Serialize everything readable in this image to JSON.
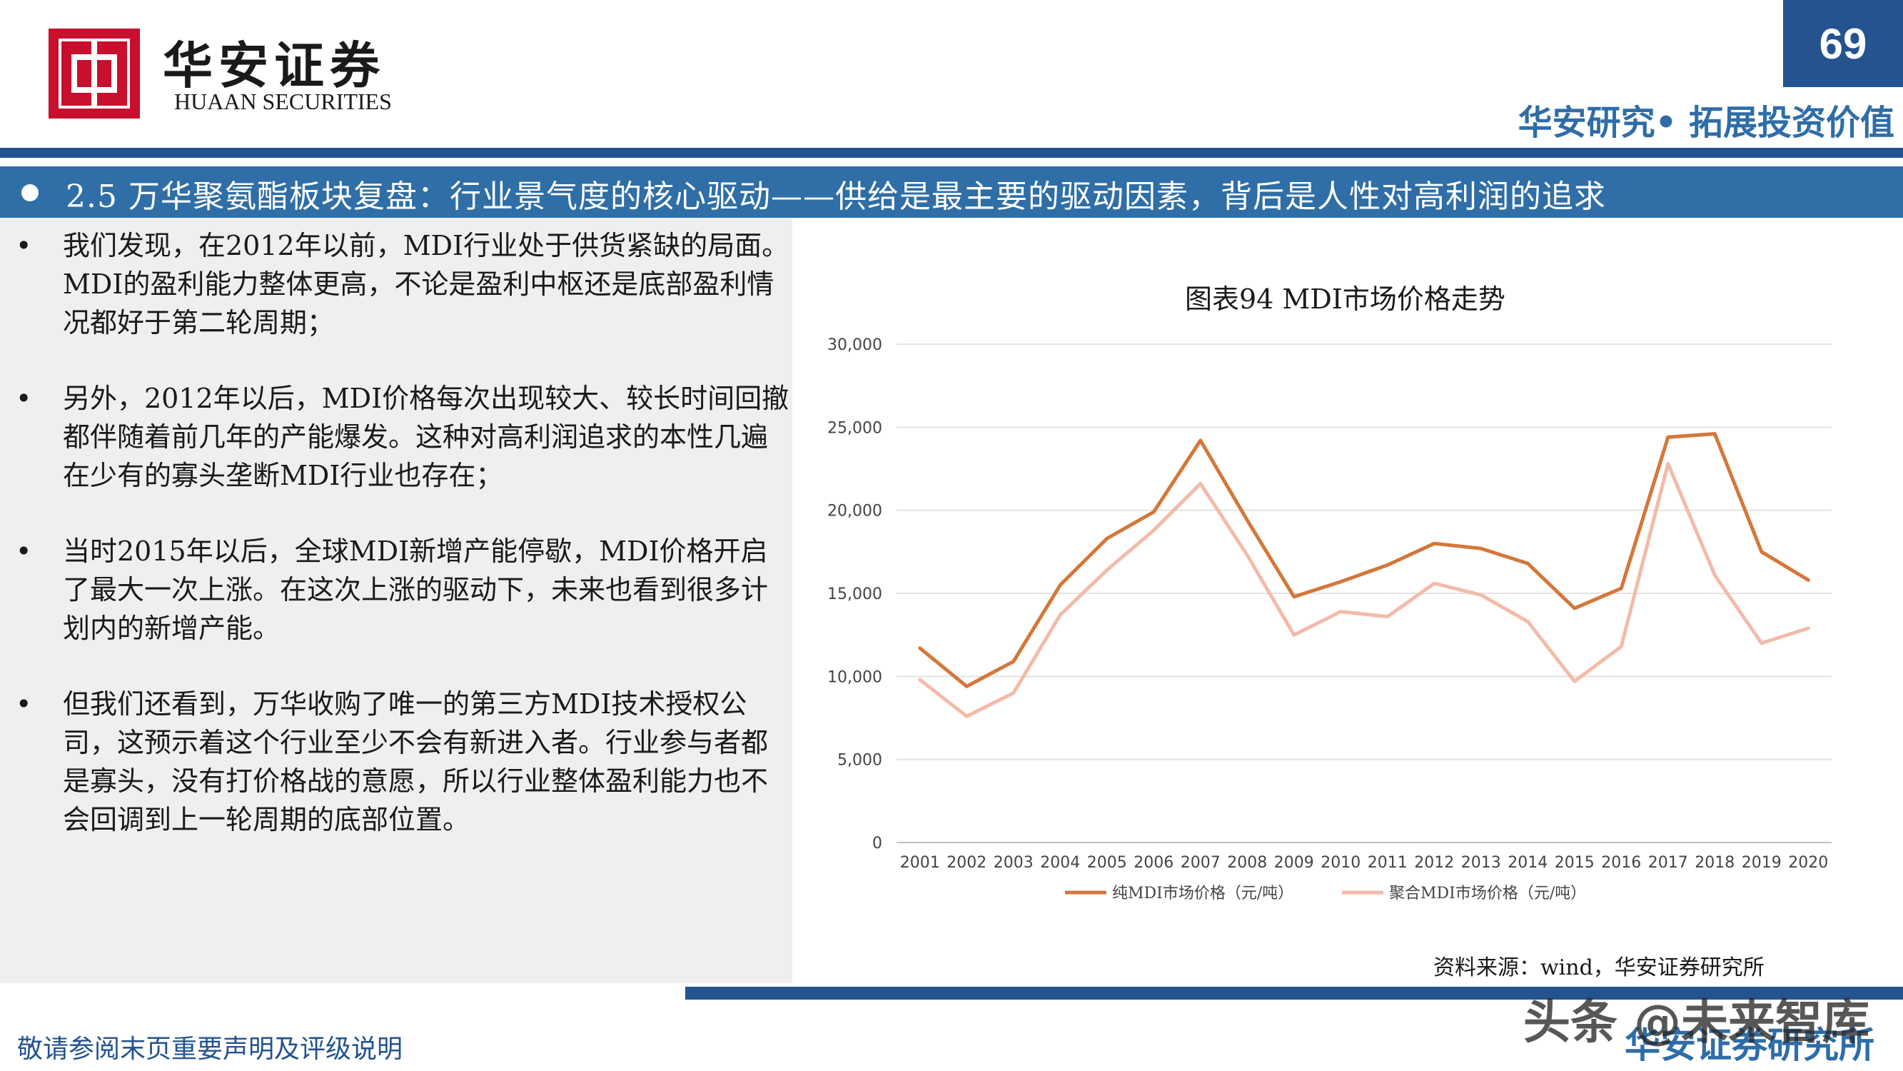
{
  "header": {
    "brand_cn": "华安证券",
    "brand_en": "HUAAN SECURITIES",
    "page_number": "69",
    "tagline": "华安研究• 拓展投资价值"
  },
  "section_title": "2.5 万华聚氨酯板块复盘：行业景气度的核心驱动——供给是最主要的驱动因素，背后是人性对高利润的追求",
  "bullets": [
    "我们发现，在2012年以前，MDI行业处于供货紧缺的局面。MDI的盈利能力整体更高，不论是盈利中枢还是底部盈利情况都好于第二轮周期；",
    "另外，2012年以后，MDI价格每次出现较大、较长时间回撤都伴随着前几年的产能爆发。这种对高利润追求的本性几遍在少有的寡头垄断MDI行业也存在；",
    "当时2015年以后，全球MDI新增产能停歇，MDI价格开启了最大一次上涨。在这次上涨的驱动下，未来也看到很多计划内的新增产能。",
    "但我们还看到，万华收购了唯一的第三方MDI技术授权公司，这预示着这个行业至少不会有新进入者。行业参与者都是寡头，没有打价格战的意愿，所以行业整体盈利能力也不会回调到上一轮周期的底部位置。"
  ],
  "chart_data": {
    "type": "line",
    "title": "图表94 MDI市场价格走势",
    "x": [
      "2001",
      "2002",
      "2003",
      "2004",
      "2005",
      "2006",
      "2007",
      "2008",
      "2009",
      "2010",
      "2011",
      "2012",
      "2013",
      "2014",
      "2015",
      "2016",
      "2017",
      "2018",
      "2019",
      "2020"
    ],
    "yticks": [
      "0",
      "5,000",
      "10,000",
      "15,000",
      "20,000",
      "25,000",
      "30,000"
    ],
    "ylim": [
      0,
      30000
    ],
    "grid": true,
    "legend_position": "bottom",
    "series": [
      {
        "name": "纯MDI市场价格（元/吨）",
        "color": "#d4773a",
        "values": [
          11700,
          9400,
          10900,
          15500,
          18300,
          19900,
          24200,
          19400,
          14800,
          15700,
          16700,
          18000,
          17700,
          16800,
          14100,
          15300,
          24400,
          24600,
          17500,
          15800
        ]
      },
      {
        "name": "聚合MDI市场价格（元/吨）",
        "color": "#f2bba8",
        "values": [
          9800,
          7600,
          9000,
          13700,
          16400,
          18800,
          21600,
          17300,
          12500,
          13900,
          13600,
          15600,
          14900,
          13300,
          9700,
          11800,
          22800,
          16100,
          12000,
          12900
        ]
      }
    ]
  },
  "source": "资料来源：wind，华安证券研究所",
  "footer": {
    "disclaimer": "敬请参阅末页重要声明及评级说明",
    "institute": "华安证券研究所",
    "watermark": "头条 @未来智库"
  }
}
